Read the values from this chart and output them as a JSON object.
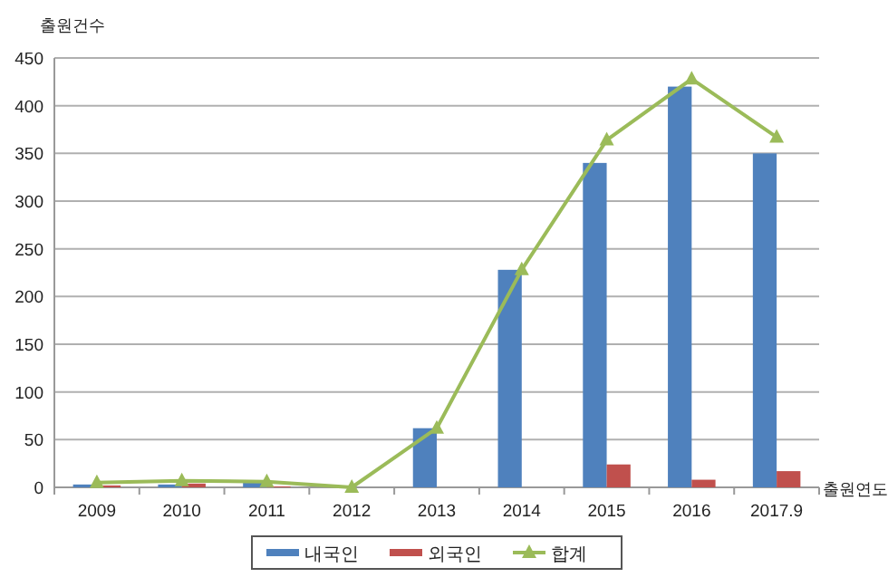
{
  "chart_data": {
    "type": "bar",
    "ylabel": "출원건수",
    "xlabel": "출원연도",
    "categories": [
      "2009",
      "2010",
      "2011",
      "2012",
      "2013",
      "2014",
      "2015",
      "2016",
      "2017.9"
    ],
    "series": [
      {
        "name": "내국인",
        "color": "#4f81bd",
        "values": [
          3,
          3,
          5,
          0,
          62,
          228,
          340,
          420,
          350
        ]
      },
      {
        "name": "외국인",
        "color": "#c0504d",
        "values": [
          2,
          4,
          1,
          0,
          0,
          0,
          24,
          8,
          17
        ]
      },
      {
        "name": "합계",
        "type": "line",
        "color": "#9bbb59",
        "marker": "triangle",
        "values": [
          5,
          7,
          6,
          0,
          62,
          228,
          364,
          428,
          367
        ]
      }
    ],
    "ylim": [
      0,
      450
    ],
    "yticks": [
      0,
      50,
      100,
      150,
      200,
      250,
      300,
      350,
      400,
      450
    ],
    "grid": "y",
    "legend": "bottom"
  }
}
